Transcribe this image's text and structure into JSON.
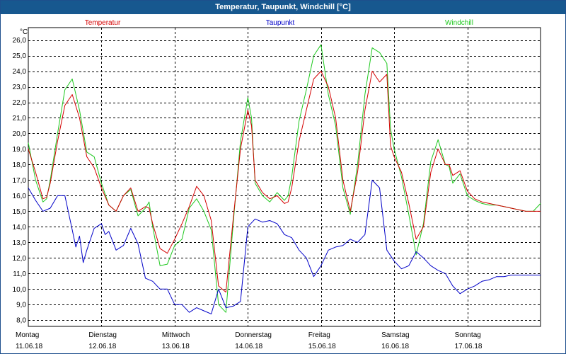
{
  "window": {
    "title": "Temperatur, Taupunkt, Windchill [°C]"
  },
  "chart_data": {
    "type": "line",
    "title": "Temperatur, Taupunkt, Windchill [°C]",
    "ylabel": "°C",
    "ylim": [
      7.6,
      26.8
    ],
    "xlim": [
      0,
      7
    ],
    "grid": true,
    "yticks": [
      "8,0",
      "9,0",
      "10,0",
      "11,0",
      "12,0",
      "13,0",
      "14,0",
      "15,0",
      "16,0",
      "17,0",
      "18,0",
      "19,0",
      "20,0",
      "21,0",
      "22,0",
      "23,0",
      "24,0",
      "25,0",
      "26,0"
    ],
    "ytick_values": [
      8,
      9,
      10,
      11,
      12,
      13,
      14,
      15,
      16,
      17,
      18,
      19,
      20,
      21,
      22,
      23,
      24,
      25,
      26
    ],
    "day_labels": [
      {
        "day": "Montag",
        "date": "11.06.18"
      },
      {
        "day": "Dienstag",
        "date": "12.06.18"
      },
      {
        "day": "Mittwoch",
        "date": "13.06.18"
      },
      {
        "day": "Donnerstag",
        "date": "14.06.18"
      },
      {
        "day": "Freitag",
        "date": "15.06.18"
      },
      {
        "day": "Samstag",
        "date": "16.06.18"
      },
      {
        "day": "Sonntag",
        "date": "17.06.18"
      }
    ],
    "series": [
      {
        "name": "Temperatur",
        "color": "#d40000",
        "x": [
          0,
          0.1,
          0.2,
          0.25,
          0.3,
          0.4,
          0.5,
          0.6,
          0.7,
          0.8,
          0.9,
          1.0,
          1.1,
          1.2,
          1.3,
          1.4,
          1.5,
          1.6,
          1.65,
          1.7,
          1.8,
          1.9,
          2.0,
          2.1,
          2.2,
          2.3,
          2.4,
          2.5,
          2.6,
          2.7,
          2.8,
          2.9,
          3.0,
          3.05,
          3.1,
          3.2,
          3.3,
          3.4,
          3.5,
          3.55,
          3.6,
          3.7,
          3.8,
          3.9,
          4.0,
          4.1,
          4.2,
          4.3,
          4.4,
          4.5,
          4.6,
          4.7,
          4.8,
          4.9,
          4.95,
          5.0,
          5.1,
          5.2,
          5.3,
          5.4,
          5.5,
          5.6,
          5.7,
          5.75,
          5.8,
          5.9,
          6.0,
          6.1,
          6.2,
          6.3,
          6.4,
          6.5,
          6.6,
          6.7,
          6.8,
          6.9,
          7.0
        ],
        "values": [
          19.0,
          17.5,
          15.8,
          15.9,
          16.8,
          19.5,
          21.8,
          22.5,
          21.0,
          18.5,
          17.8,
          16.5,
          15.4,
          15.0,
          16.0,
          16.5,
          15.0,
          15.3,
          15.2,
          14.2,
          12.6,
          12.3,
          13.2,
          14.2,
          15.3,
          16.6,
          16.0,
          14.4,
          10.2,
          9.8,
          14.5,
          19.0,
          21.5,
          20.5,
          17.0,
          16.2,
          15.8,
          16.0,
          15.5,
          15.6,
          16.5,
          19.5,
          21.5,
          23.5,
          24.0,
          23.0,
          21.0,
          17.0,
          15.0,
          17.5,
          21.5,
          24.0,
          23.3,
          23.8,
          19.2,
          18.5,
          17.5,
          15.5,
          13.2,
          14.0,
          17.5,
          19.0,
          18.0,
          18.0,
          17.3,
          17.6,
          16.3,
          15.8,
          15.6,
          15.5,
          15.4,
          15.3,
          15.2,
          15.1,
          15.0,
          15.0,
          15.0
        ]
      },
      {
        "name": "Taupunkt",
        "color": "#0000c8",
        "x": [
          0,
          0.1,
          0.2,
          0.3,
          0.4,
          0.5,
          0.6,
          0.65,
          0.7,
          0.75,
          0.8,
          0.9,
          1.0,
          1.05,
          1.1,
          1.2,
          1.3,
          1.4,
          1.5,
          1.6,
          1.7,
          1.8,
          1.9,
          2.0,
          2.1,
          2.2,
          2.3,
          2.4,
          2.5,
          2.6,
          2.7,
          2.8,
          2.9,
          3.0,
          3.1,
          3.2,
          3.3,
          3.4,
          3.5,
          3.6,
          3.7,
          3.8,
          3.9,
          4.0,
          4.1,
          4.2,
          4.3,
          4.4,
          4.5,
          4.6,
          4.7,
          4.8,
          4.9,
          5.0,
          5.1,
          5.2,
          5.3,
          5.4,
          5.5,
          5.6,
          5.7,
          5.8,
          5.9,
          6.0,
          6.1,
          6.2,
          6.3,
          6.4,
          6.5,
          6.6,
          6.7,
          6.8,
          6.9,
          7.0
        ],
        "values": [
          16.5,
          15.7,
          15.0,
          15.2,
          16.0,
          16.0,
          13.8,
          12.7,
          13.4,
          11.7,
          12.5,
          13.9,
          14.2,
          13.5,
          13.7,
          12.5,
          12.8,
          13.9,
          12.9,
          10.7,
          10.5,
          10.0,
          10.0,
          9.0,
          9.0,
          8.5,
          8.8,
          8.6,
          8.4,
          10.0,
          8.8,
          8.9,
          9.2,
          14.0,
          14.5,
          14.3,
          14.4,
          14.2,
          13.5,
          13.3,
          12.5,
          12.0,
          10.8,
          11.5,
          12.5,
          12.7,
          12.8,
          13.2,
          13.0,
          13.5,
          17.0,
          16.5,
          12.5,
          11.8,
          11.3,
          11.5,
          12.4,
          12.0,
          11.5,
          11.2,
          11.0,
          10.2,
          9.7,
          10.0,
          10.2,
          10.5,
          10.6,
          10.8,
          10.8,
          10.9,
          10.9,
          10.9,
          10.9,
          10.9
        ]
      },
      {
        "name": "Windchill",
        "color": "#1ec81e",
        "x": [
          0,
          0.1,
          0.2,
          0.25,
          0.3,
          0.4,
          0.5,
          0.6,
          0.7,
          0.8,
          0.9,
          1.0,
          1.1,
          1.2,
          1.3,
          1.4,
          1.5,
          1.6,
          1.65,
          1.7,
          1.8,
          1.9,
          2.0,
          2.1,
          2.2,
          2.3,
          2.4,
          2.5,
          2.6,
          2.7,
          2.8,
          2.9,
          3.0,
          3.05,
          3.1,
          3.2,
          3.3,
          3.4,
          3.5,
          3.55,
          3.6,
          3.7,
          3.8,
          3.9,
          4.0,
          4.1,
          4.2,
          4.3,
          4.4,
          4.5,
          4.6,
          4.7,
          4.8,
          4.9,
          4.95,
          5.0,
          5.1,
          5.2,
          5.3,
          5.4,
          5.5,
          5.6,
          5.7,
          5.75,
          5.8,
          5.9,
          6.0,
          6.1,
          6.2,
          6.3,
          6.4,
          6.5,
          6.6,
          6.7,
          6.8,
          6.9,
          7.0
        ],
        "values": [
          19.4,
          17.0,
          15.6,
          15.8,
          17.0,
          20.0,
          22.8,
          23.5,
          21.5,
          18.8,
          18.5,
          16.8,
          15.4,
          15.0,
          16.0,
          16.4,
          14.7,
          15.2,
          15.6,
          14.0,
          11.5,
          11.6,
          12.8,
          13.2,
          15.2,
          15.8,
          15.0,
          13.8,
          9.0,
          8.5,
          14.2,
          19.5,
          22.3,
          21.0,
          16.8,
          16.0,
          15.6,
          16.2,
          15.7,
          16.0,
          17.2,
          20.8,
          22.8,
          25.0,
          25.7,
          22.5,
          20.5,
          16.5,
          14.8,
          18.0,
          22.5,
          25.5,
          25.2,
          24.5,
          20.3,
          19.0,
          17.2,
          14.8,
          12.2,
          14.2,
          18.2,
          19.6,
          18.0,
          17.9,
          16.8,
          17.4,
          16.0,
          15.7,
          15.5,
          15.4,
          15.4,
          15.3,
          15.2,
          15.1,
          15.0,
          15.0,
          15.5
        ]
      }
    ]
  }
}
